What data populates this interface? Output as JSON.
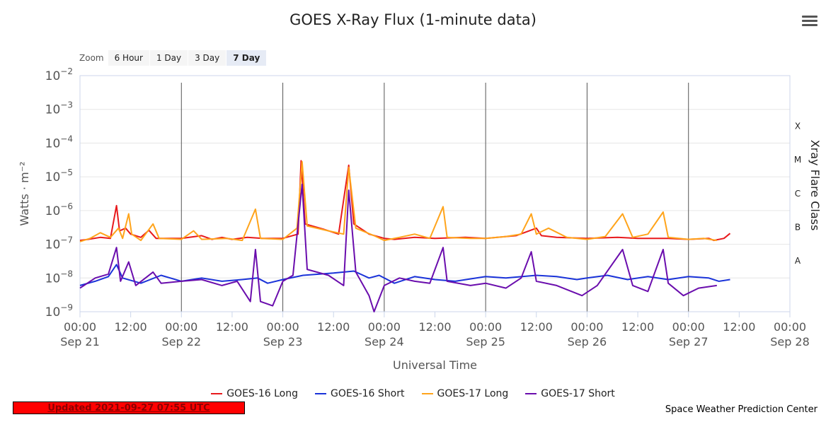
{
  "chart_data": {
    "type": "line",
    "title": "GOES X-Ray Flux (1-minute data)",
    "xlabel": "Universal Time",
    "ylabel": "Watts · m⁻²",
    "y2label": "Xray Flare Class",
    "yscale": "log",
    "ylim": [
      1e-09,
      0.01
    ],
    "xlim_days": [
      0,
      7
    ],
    "y_ticks": [
      {
        "exp": "-2",
        "value": 0.01
      },
      {
        "exp": "-3",
        "value": 0.001
      },
      {
        "exp": "-4",
        "value": 0.0001
      },
      {
        "exp": "-5",
        "value": 1e-05
      },
      {
        "exp": "-6",
        "value": 1e-06
      },
      {
        "exp": "-7",
        "value": 1e-07
      },
      {
        "exp": "-8",
        "value": 1e-08
      },
      {
        "exp": "-9",
        "value": 1e-09
      }
    ],
    "flare_classes": [
      {
        "label": "X",
        "value": 0.00032
      },
      {
        "label": "M",
        "value": 3.2e-05
      },
      {
        "label": "C",
        "value": 3.2e-06
      },
      {
        "label": "B",
        "value": 3.2e-07
      },
      {
        "label": "A",
        "value": 3.2e-08
      }
    ],
    "x_ticks": [
      {
        "time": "00:00",
        "date": "Sep 21",
        "day": 0
      },
      {
        "time": "12:00",
        "date": "",
        "day": 0.5
      },
      {
        "time": "00:00",
        "date": "Sep 22",
        "day": 1
      },
      {
        "time": "12:00",
        "date": "",
        "day": 1.5
      },
      {
        "time": "00:00",
        "date": "Sep 23",
        "day": 2
      },
      {
        "time": "12:00",
        "date": "",
        "day": 2.5
      },
      {
        "time": "00:00",
        "date": "Sep 24",
        "day": 3
      },
      {
        "time": "12:00",
        "date": "",
        "day": 3.5
      },
      {
        "time": "00:00",
        "date": "Sep 25",
        "day": 4
      },
      {
        "time": "12:00",
        "date": "",
        "day": 4.5
      },
      {
        "time": "00:00",
        "date": "Sep 26",
        "day": 5
      },
      {
        "time": "12:00",
        "date": "",
        "day": 5.5
      },
      {
        "time": "00:00",
        "date": "Sep 27",
        "day": 6
      },
      {
        "time": "12:00",
        "date": "",
        "day": 6.5
      },
      {
        "time": "00:00",
        "date": "Sep 28",
        "day": 7
      }
    ],
    "grid": true,
    "legend_position": "bottom",
    "series": [
      {
        "name": "GOES-16 Long",
        "color": "#e8191c",
        "points": [
          [
            0,
            1.3e-07
          ],
          [
            0.08,
            1.4e-07
          ],
          [
            0.2,
            1.6e-07
          ],
          [
            0.3,
            1.5e-07
          ],
          [
            0.36,
            1.4e-06
          ],
          [
            0.39,
            2.5e-07
          ],
          [
            0.45,
            3e-07
          ],
          [
            0.5,
            2e-07
          ],
          [
            0.6,
            1.6e-07
          ],
          [
            0.68,
            2.6e-07
          ],
          [
            0.75,
            1.5e-07
          ],
          [
            1.0,
            1.5e-07
          ],
          [
            1.2,
            1.8e-07
          ],
          [
            1.3,
            1.4e-07
          ],
          [
            1.4,
            1.6e-07
          ],
          [
            1.5,
            1.4e-07
          ],
          [
            1.65,
            1.6e-07
          ],
          [
            1.8,
            1.5e-07
          ],
          [
            2.0,
            1.5e-07
          ],
          [
            2.15,
            2e-07
          ],
          [
            2.18,
            3e-05
          ],
          [
            2.22,
            4e-07
          ],
          [
            2.4,
            2.8e-07
          ],
          [
            2.55,
            2e-07
          ],
          [
            2.65,
            2.2e-05
          ],
          [
            2.7,
            4e-07
          ],
          [
            2.85,
            2e-07
          ],
          [
            3.0,
            1.5e-07
          ],
          [
            3.1,
            1.4e-07
          ],
          [
            3.3,
            1.6e-07
          ],
          [
            3.5,
            1.5e-07
          ],
          [
            3.8,
            1.6e-07
          ],
          [
            4.0,
            1.5e-07
          ],
          [
            4.3,
            1.8e-07
          ],
          [
            4.5,
            3e-07
          ],
          [
            4.55,
            1.8e-07
          ],
          [
            4.7,
            1.6e-07
          ],
          [
            5.0,
            1.5e-07
          ],
          [
            5.3,
            1.6e-07
          ],
          [
            5.5,
            1.5e-07
          ],
          [
            5.8,
            1.5e-07
          ],
          [
            6.0,
            1.4e-07
          ],
          [
            6.2,
            1.5e-07
          ],
          [
            6.25,
            1.3e-07
          ],
          [
            6.35,
            1.5e-07
          ],
          [
            6.41,
            2.1e-07
          ]
        ]
      },
      {
        "name": "GOES-16 Short",
        "color": "#1a33d9",
        "points": [
          [
            0,
            6e-09
          ],
          [
            0.15,
            8e-09
          ],
          [
            0.28,
            1.1e-08
          ],
          [
            0.36,
            2.5e-08
          ],
          [
            0.42,
            1e-08
          ],
          [
            0.6,
            7e-09
          ],
          [
            0.8,
            1.2e-08
          ],
          [
            1.0,
            8e-09
          ],
          [
            1.2,
            1e-08
          ],
          [
            1.4,
            8e-09
          ],
          [
            1.6,
            9e-09
          ],
          [
            1.75,
            1e-08
          ],
          [
            1.85,
            7e-09
          ],
          [
            2.0,
            9e-09
          ],
          [
            2.2,
            1.2e-08
          ],
          [
            2.5,
            1.4e-08
          ],
          [
            2.7,
            1.6e-08
          ],
          [
            2.85,
            1e-08
          ],
          [
            2.95,
            1.2e-08
          ],
          [
            3.0,
            1e-08
          ],
          [
            3.1,
            7e-09
          ],
          [
            3.3,
            1.1e-08
          ],
          [
            3.5,
            9e-09
          ],
          [
            3.7,
            8e-09
          ],
          [
            4.0,
            1.1e-08
          ],
          [
            4.2,
            1e-08
          ],
          [
            4.5,
            1.2e-08
          ],
          [
            4.7,
            1.1e-08
          ],
          [
            4.9,
            9e-09
          ],
          [
            5.0,
            1e-08
          ],
          [
            5.2,
            1.2e-08
          ],
          [
            5.4,
            9e-09
          ],
          [
            5.6,
            1.1e-08
          ],
          [
            5.8,
            9e-09
          ],
          [
            6.0,
            1.1e-08
          ],
          [
            6.2,
            1e-08
          ],
          [
            6.3,
            8e-09
          ],
          [
            6.41,
            9e-09
          ]
        ]
      },
      {
        "name": "GOES-17 Long",
        "color": "#ffa41b",
        "points": [
          [
            0,
            1.2e-07
          ],
          [
            0.1,
            1.5e-07
          ],
          [
            0.2,
            2.2e-07
          ],
          [
            0.3,
            1.6e-07
          ],
          [
            0.38,
            3e-07
          ],
          [
            0.42,
            1.5e-07
          ],
          [
            0.48,
            8e-07
          ],
          [
            0.51,
            2e-07
          ],
          [
            0.6,
            1.3e-07
          ],
          [
            0.72,
            4e-07
          ],
          [
            0.78,
            1.5e-07
          ],
          [
            1.0,
            1.4e-07
          ],
          [
            1.12,
            2.5e-07
          ],
          [
            1.2,
            1.4e-07
          ],
          [
            1.45,
            1.5e-07
          ],
          [
            1.6,
            1.3e-07
          ],
          [
            1.73,
            1.1e-06
          ],
          [
            1.78,
            1.5e-07
          ],
          [
            2.0,
            1.4e-07
          ],
          [
            2.14,
            3e-07
          ],
          [
            2.19,
            2.8e-05
          ],
          [
            2.24,
            3.5e-07
          ],
          [
            2.45,
            2.5e-07
          ],
          [
            2.6,
            2e-07
          ],
          [
            2.65,
            1.9e-05
          ],
          [
            2.72,
            3e-07
          ],
          [
            2.9,
            1.8e-07
          ],
          [
            3.0,
            1.3e-07
          ],
          [
            3.15,
            1.6e-07
          ],
          [
            3.3,
            2e-07
          ],
          [
            3.45,
            1.5e-07
          ],
          [
            3.58,
            1.3e-06
          ],
          [
            3.62,
            1.6e-07
          ],
          [
            3.85,
            1.5e-07
          ],
          [
            4.0,
            1.5e-07
          ],
          [
            4.2,
            1.7e-07
          ],
          [
            4.35,
            2e-07
          ],
          [
            4.45,
            8e-07
          ],
          [
            4.5,
            2e-07
          ],
          [
            4.62,
            3e-07
          ],
          [
            4.8,
            1.6e-07
          ],
          [
            5.0,
            1.4e-07
          ],
          [
            5.18,
            1.7e-07
          ],
          [
            5.35,
            8e-07
          ],
          [
            5.45,
            1.6e-07
          ],
          [
            5.6,
            2e-07
          ],
          [
            5.75,
            9e-07
          ],
          [
            5.8,
            1.6e-07
          ],
          [
            6.0,
            1.4e-07
          ],
          [
            6.15,
            1.5e-07
          ],
          [
            6.28,
            1.3e-07
          ]
        ]
      },
      {
        "name": "GOES-17 Short",
        "color": "#6a0dad",
        "points": [
          [
            0,
            5e-09
          ],
          [
            0.15,
            1e-08
          ],
          [
            0.28,
            1.3e-08
          ],
          [
            0.36,
            8e-08
          ],
          [
            0.4,
            8e-09
          ],
          [
            0.48,
            3e-08
          ],
          [
            0.55,
            6e-09
          ],
          [
            0.72,
            1.5e-08
          ],
          [
            0.8,
            7e-09
          ],
          [
            1.0,
            8e-09
          ],
          [
            1.2,
            9e-09
          ],
          [
            1.4,
            6e-09
          ],
          [
            1.55,
            8e-09
          ],
          [
            1.68,
            2e-09
          ],
          [
            1.73,
            7e-08
          ],
          [
            1.78,
            2e-09
          ],
          [
            1.9,
            1.5e-09
          ],
          [
            2.0,
            8e-09
          ],
          [
            2.1,
            1.2e-08
          ],
          [
            2.19,
            6e-06
          ],
          [
            2.24,
            1.8e-08
          ],
          [
            2.45,
            1.2e-08
          ],
          [
            2.6,
            6e-09
          ],
          [
            2.65,
            4e-06
          ],
          [
            2.72,
            1.5e-08
          ],
          [
            2.85,
            3e-09
          ],
          [
            2.9,
            1e-09
          ],
          [
            3.0,
            6e-09
          ],
          [
            3.15,
            1e-08
          ],
          [
            3.3,
            8e-09
          ],
          [
            3.45,
            7e-09
          ],
          [
            3.58,
            8e-08
          ],
          [
            3.62,
            8e-09
          ],
          [
            3.85,
            6e-09
          ],
          [
            4.0,
            7e-09
          ],
          [
            4.2,
            5e-09
          ],
          [
            4.35,
            1e-08
          ],
          [
            4.45,
            6e-08
          ],
          [
            4.5,
            8e-09
          ],
          [
            4.7,
            6e-09
          ],
          [
            4.95,
            3e-09
          ],
          [
            5.1,
            6e-09
          ],
          [
            5.35,
            7e-08
          ],
          [
            5.45,
            6e-09
          ],
          [
            5.6,
            4e-09
          ],
          [
            5.75,
            7e-08
          ],
          [
            5.8,
            7e-09
          ],
          [
            5.95,
            3e-09
          ],
          [
            6.1,
            5e-09
          ],
          [
            6.28,
            6e-09
          ]
        ]
      }
    ]
  },
  "zoom": {
    "label": "Zoom",
    "buttons": [
      "6 Hour",
      "1 Day",
      "3 Day",
      "7 Day"
    ],
    "active": "7 Day"
  },
  "footer": {
    "updated": "Updated 2021-09-27 07:55 UTC",
    "credit": "Space Weather Prediction Center"
  },
  "colors": {
    "gridline": "#e6e6e6",
    "day_marker": "#555555",
    "axis_text": "#555555"
  }
}
